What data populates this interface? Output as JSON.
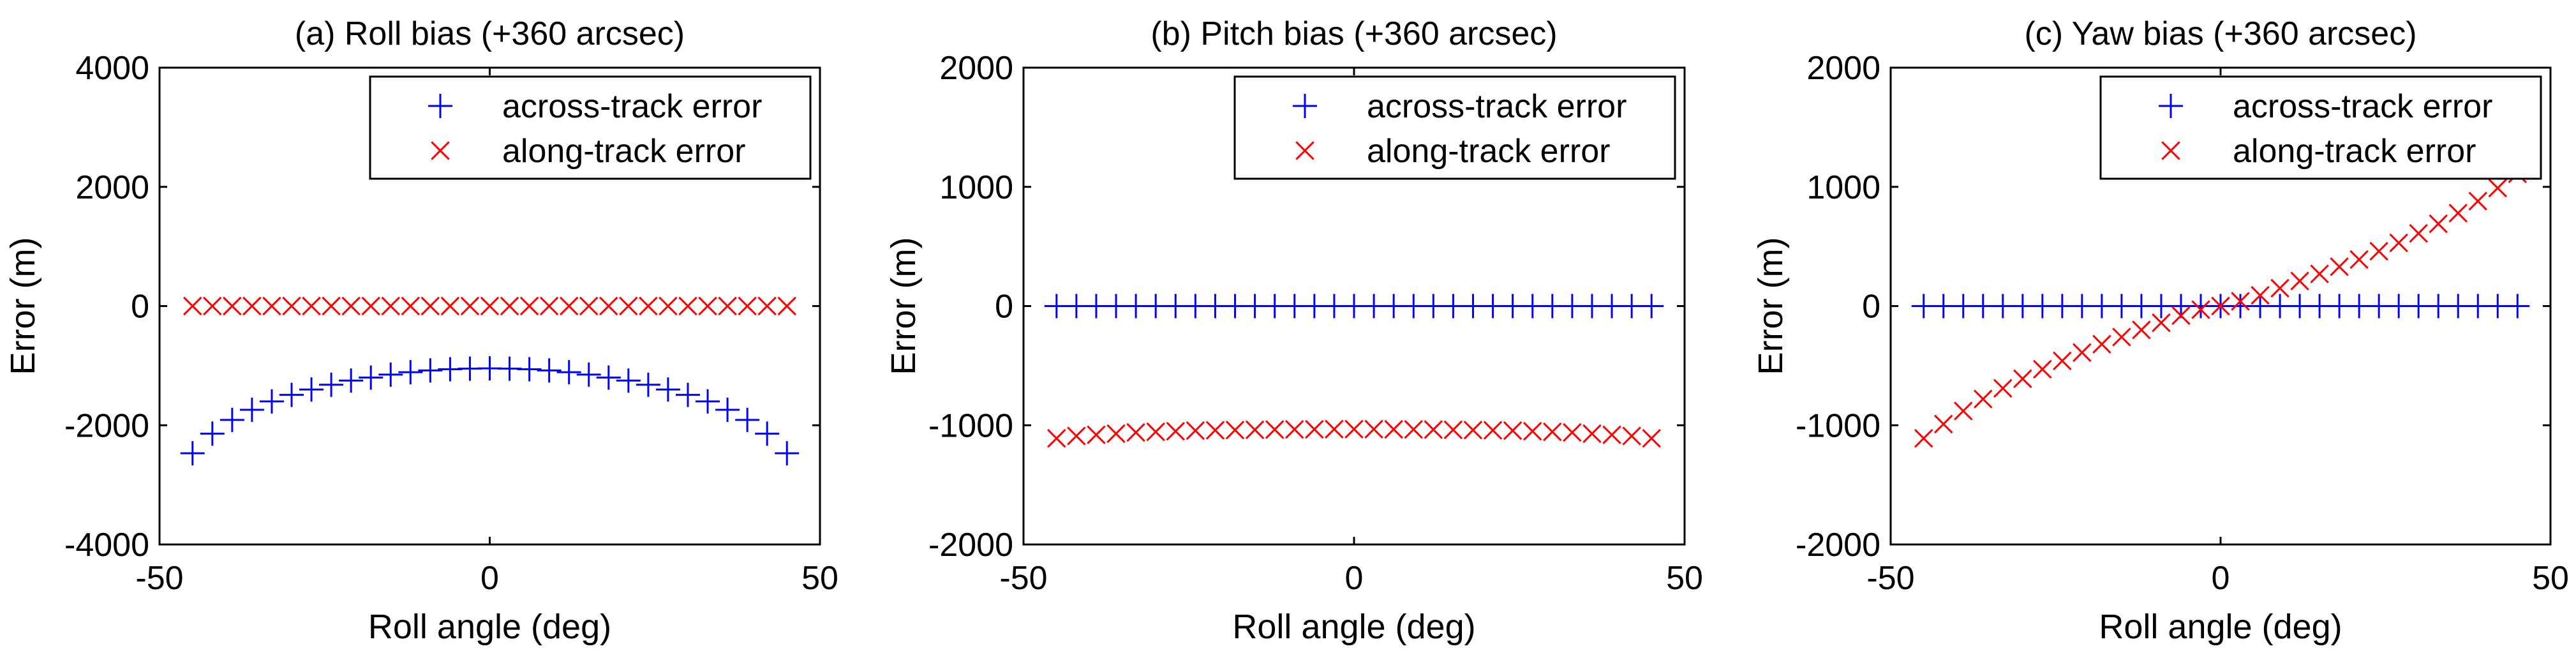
{
  "figure_title": "Roll, pitch and yaw bias error panels",
  "chart_data": [
    {
      "type": "scatter",
      "title": "(a) Roll bias (+360 arcsec)",
      "xlabel": "Roll angle (deg)",
      "ylabel": "Error (m)",
      "xlim": [
        -50,
        50
      ],
      "ylim": [
        -4000,
        4000
      ],
      "xticks": [
        "-50",
        "0",
        "50"
      ],
      "yticks": [
        "-4000",
        "-2000",
        "0",
        "2000",
        "4000"
      ],
      "grid": false,
      "legend": "top-right",
      "x": [
        -45,
        -42,
        -39,
        -36,
        -33,
        -30,
        -27,
        -24,
        -21,
        -18,
        -15,
        -12,
        -9,
        -6,
        -3,
        0,
        3,
        6,
        9,
        12,
        15,
        18,
        21,
        24,
        27,
        30,
        33,
        36,
        39,
        42,
        45
      ],
      "series": [
        {
          "name": "across-track error",
          "marker": "plus",
          "color": "#0000ff",
          "values": [
            -2470,
            -2140,
            -1910,
            -1740,
            -1600,
            -1490,
            -1400,
            -1320,
            -1250,
            -1200,
            -1150,
            -1110,
            -1080,
            -1060,
            -1050,
            -1045,
            -1050,
            -1060,
            -1080,
            -1110,
            -1150,
            -1200,
            -1250,
            -1320,
            -1400,
            -1490,
            -1600,
            -1740,
            -1910,
            -2140,
            -2470
          ]
        },
        {
          "name": "along-track error",
          "marker": "cross",
          "color": "#ff0000",
          "values": [
            0,
            0,
            0,
            0,
            0,
            0,
            0,
            0,
            0,
            0,
            0,
            0,
            0,
            0,
            0,
            0,
            0,
            0,
            0,
            0,
            0,
            0,
            0,
            0,
            0,
            0,
            0,
            0,
            0,
            0,
            0
          ]
        }
      ]
    },
    {
      "type": "scatter",
      "title": "(b) Pitch bias (+360 arcsec)",
      "xlabel": "Roll angle (deg)",
      "ylabel": "Error (m)",
      "xlim": [
        -50,
        50
      ],
      "ylim": [
        -2000,
        2000
      ],
      "xticks": [
        "-50",
        "0",
        "50"
      ],
      "yticks": [
        "-2000",
        "-1000",
        "0",
        "1000",
        "2000"
      ],
      "grid": false,
      "legend": "top-right",
      "x": [
        -45,
        -42,
        -39,
        -36,
        -33,
        -30,
        -27,
        -24,
        -21,
        -18,
        -15,
        -12,
        -9,
        -6,
        -3,
        0,
        3,
        6,
        9,
        12,
        15,
        18,
        21,
        24,
        27,
        30,
        33,
        36,
        39,
        42,
        45
      ],
      "series": [
        {
          "name": "across-track error",
          "marker": "plus",
          "color": "#0000ff",
          "values": [
            0,
            0,
            0,
            0,
            0,
            0,
            0,
            0,
            0,
            0,
            0,
            0,
            0,
            0,
            0,
            0,
            0,
            0,
            0,
            0,
            0,
            0,
            0,
            0,
            0,
            0,
            0,
            0,
            0,
            0,
            0
          ]
        },
        {
          "name": "along-track error",
          "marker": "cross",
          "color": "#ff0000",
          "values": [
            -1110,
            -1090,
            -1080,
            -1070,
            -1060,
            -1055,
            -1050,
            -1045,
            -1042,
            -1040,
            -1038,
            -1036,
            -1035,
            -1034,
            -1033,
            -1033,
            -1033,
            -1034,
            -1035,
            -1036,
            -1038,
            -1040,
            -1042,
            -1045,
            -1050,
            -1055,
            -1060,
            -1070,
            -1080,
            -1090,
            -1110
          ]
        }
      ]
    },
    {
      "type": "scatter",
      "title": "(c) Yaw bias (+360 arcsec)",
      "xlabel": "Roll angle (deg)",
      "ylabel": "Error (m)",
      "xlim": [
        -50,
        50
      ],
      "ylim": [
        -2000,
        2000
      ],
      "xticks": [
        "-50",
        "0",
        "50"
      ],
      "yticks": [
        "-2000",
        "-1000",
        "0",
        "1000",
        "2000"
      ],
      "grid": false,
      "legend": "top-right",
      "x": [
        -45,
        -42,
        -39,
        -36,
        -33,
        -30,
        -27,
        -24,
        -21,
        -18,
        -15,
        -12,
        -9,
        -6,
        -3,
        0,
        3,
        6,
        9,
        12,
        15,
        18,
        21,
        24,
        27,
        30,
        33,
        36,
        39,
        42,
        45
      ],
      "series": [
        {
          "name": "across-track error",
          "marker": "plus",
          "color": "#0000ff",
          "values": [
            0,
            0,
            0,
            0,
            0,
            0,
            0,
            0,
            0,
            0,
            0,
            0,
            0,
            0,
            0,
            0,
            0,
            0,
            0,
            0,
            0,
            0,
            0,
            0,
            0,
            0,
            0,
            0,
            0,
            0,
            0
          ]
        },
        {
          "name": "along-track error",
          "marker": "cross",
          "color": "#ff0000",
          "values": [
            -1110,
            -990,
            -880,
            -780,
            -690,
            -610,
            -530,
            -460,
            -390,
            -320,
            -260,
            -200,
            -140,
            -80,
            -30,
            0,
            40,
            90,
            150,
            210,
            270,
            330,
            390,
            460,
            530,
            610,
            690,
            780,
            880,
            990,
            1110
          ]
        }
      ]
    }
  ]
}
